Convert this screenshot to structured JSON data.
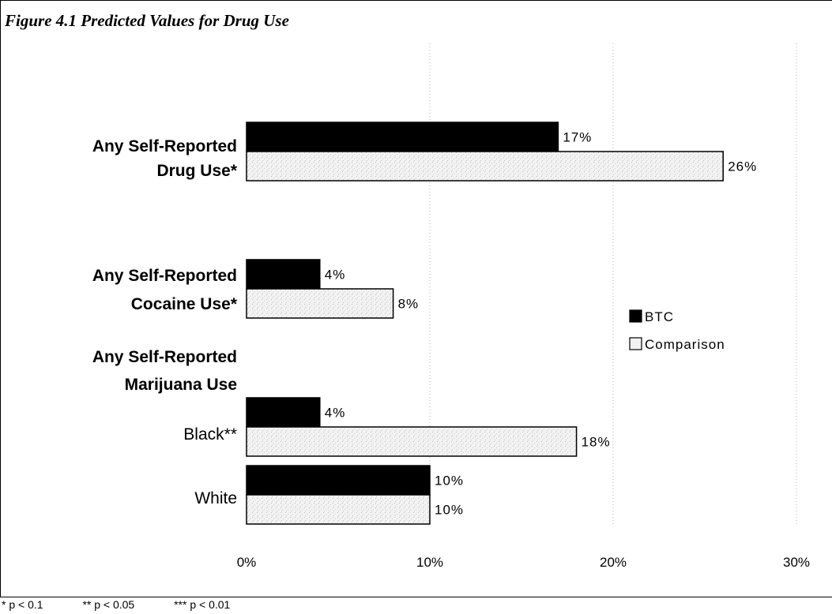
{
  "chart_data": {
    "type": "bar",
    "orientation": "horizontal",
    "title": "Figure 4.1   Predicted Values for Drug Use",
    "categories": [
      {
        "label": [
          "Any Self-Reported",
          "Drug Use*"
        ],
        "bold": true
      },
      {
        "label": [
          "Any Self-Reported",
          "Cocaine Use*"
        ],
        "bold": true
      },
      {
        "label": [
          "Any Self-Reported",
          "Marijuana Use"
        ],
        "bold": true,
        "header_only": true
      },
      {
        "label": [
          "Black**"
        ],
        "bold": false
      },
      {
        "label": [
          "White"
        ],
        "bold": false
      }
    ],
    "series": [
      {
        "name": "BTC",
        "color": "#000000",
        "values": [
          17,
          4,
          null,
          4,
          10
        ],
        "labels": [
          "17%",
          "4%",
          "",
          "4%",
          "10%"
        ]
      },
      {
        "name": "Comparison",
        "color": "#f2f2f2",
        "values": [
          26,
          8,
          null,
          18,
          10
        ],
        "labels": [
          "26%",
          "8%",
          "",
          "18%",
          "10%"
        ]
      }
    ],
    "xlim": [
      0,
      30
    ],
    "xticks": [
      "0%",
      "10%",
      "20%",
      "30%"
    ],
    "grid": true,
    "legend_position": "right",
    "legend_icons": [
      "■",
      "□"
    ]
  },
  "footnotes": [
    "* p < 0.1",
    "** p < 0.05",
    "*** p < 0.01"
  ]
}
